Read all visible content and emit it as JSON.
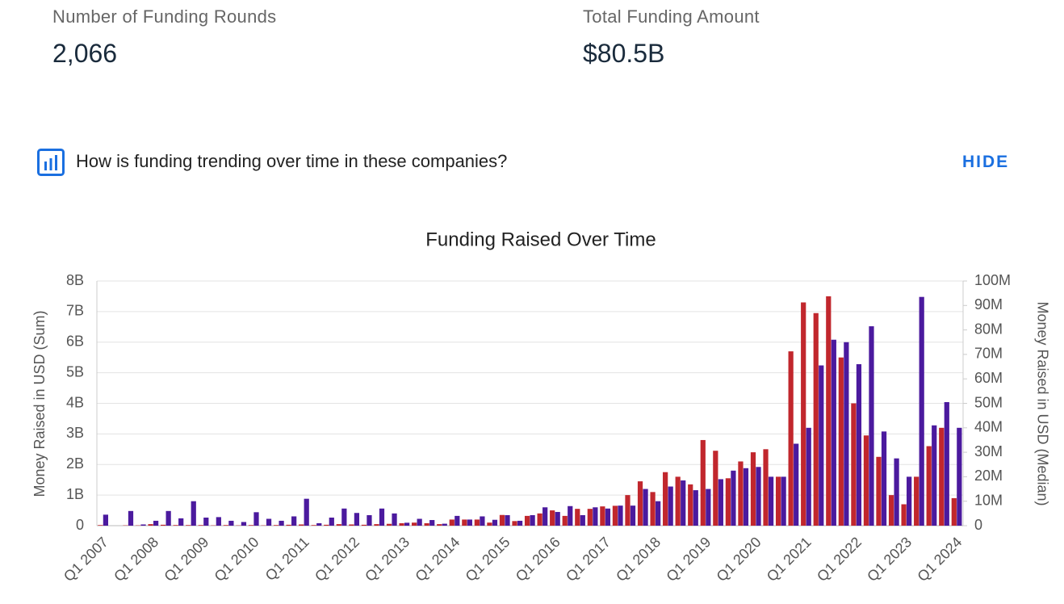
{
  "stats": [
    {
      "label": "Number of Funding Rounds",
      "value": "2,066"
    },
    {
      "label": "Total Funding Amount",
      "value": "$80.5B"
    }
  ],
  "question": "How is funding trending over time in these companies?",
  "hide": "HIDE",
  "chart_data": {
    "type": "bar",
    "title": "Funding Raised Over Time",
    "ylabel": "Money Raised in USD (Sum)",
    "y2label": "Money Raised in USD (Median)",
    "categories": [
      "Q1 2007",
      null,
      null,
      null,
      "Q1 2008",
      null,
      null,
      null,
      "Q1 2009",
      null,
      null,
      null,
      "Q1 2010",
      null,
      null,
      null,
      "Q1 2011",
      null,
      null,
      null,
      "Q1 2012",
      null,
      null,
      null,
      "Q1 2013",
      null,
      null,
      null,
      "Q1 2014",
      null,
      null,
      null,
      "Q1 2015",
      null,
      null,
      null,
      "Q1 2016",
      null,
      null,
      null,
      "Q1 2017",
      null,
      null,
      null,
      "Q1 2018",
      null,
      null,
      null,
      "Q1 2019",
      null,
      null,
      null,
      "Q1 2020",
      null,
      null,
      null,
      "Q1 2021",
      null,
      null,
      null,
      "Q1 2022",
      null,
      null,
      null,
      "Q1 2023",
      null,
      null,
      null,
      "Q1 2024"
    ],
    "series": [
      {
        "color": "#c1272d",
        "values": [
          20000000.0,
          0,
          10000000.0,
          10000000.0,
          50000000.0,
          30000000.0,
          20000000.0,
          20000000.0,
          20000000.0,
          10000000.0,
          20000000.0,
          10000000.0,
          20000000.0,
          10000000.0,
          20000000.0,
          30000000.0,
          40000000.0,
          20000000.0,
          30000000.0,
          50000000.0,
          40000000.0,
          30000000.0,
          50000000.0,
          60000000.0,
          80000000.0,
          100000000.0,
          80000000.0,
          50000000.0,
          200000000.0,
          200000000.0,
          200000000.0,
          100000000.0,
          350000000.0,
          150000000.0,
          320000000.0,
          400000000.0,
          500000000.0,
          320000000.0,
          550000000.0,
          550000000.0,
          630000000.0,
          650000000.0,
          1000000000.0,
          1450000000.0,
          1100000000.0,
          1750000000.0,
          1600000000.0,
          1350000000.0,
          2800000000.0,
          2450000000.0,
          1550000000.0,
          2100000000.0,
          2400000000.0,
          2500000000.0,
          1600000000.0,
          5700000000.0,
          7300000000.0,
          6950000000.0,
          7500000000.0,
          5500000000.0,
          4000000000.0,
          2950000000.0,
          2250000000.0,
          1000000000.0,
          700000000.0,
          1600000000.0,
          2600000000.0,
          3200000000.0,
          900000000.0
        ]
      },
      {
        "color": "#4b1a9e",
        "axis": "y2",
        "values": [
          4500000.0,
          0,
          6000000.0,
          500000.0,
          2000000.0,
          6000000.0,
          3000000.0,
          10000000.0,
          3300000.0,
          3500000.0,
          2000000.0,
          1500000.0,
          5500000.0,
          2800000.0,
          2000000.0,
          3800000.0,
          11000000.0,
          1000000.0,
          3300000.0,
          7000000.0,
          5200000.0,
          4300000.0,
          7000000.0,
          5000000.0,
          1200000.0,
          2800000.0,
          2300000.0,
          800000.0,
          4000000.0,
          2500000.0,
          3800000.0,
          2400000.0,
          4300000.0,
          2000000.0,
          4300000.0,
          7500000.0,
          5600000.0,
          8000000.0,
          4300000.0,
          7500000.0,
          7000000.0,
          8200000.0,
          8200000.0,
          15000000.0,
          10000000.0,
          16000000.0,
          18500000.0,
          14500000.0,
          15000000.0,
          19000000.0,
          22500000.0,
          23500000.0,
          24000000.0,
          20000000.0,
          20000000.0,
          33500000.0,
          40000000.0,
          65500000.0,
          76000000.0,
          75000000.0,
          66000000.0,
          81500000.0,
          38500000.0,
          27500000.0,
          20000000.0,
          93500000.0,
          41000000.0,
          50500000.0,
          40000000.0
        ]
      }
    ],
    "ylim": [
      0,
      8000000000.0
    ],
    "yticks": [
      0,
      {
        "value": 1000000000.0,
        "label": "1B"
      },
      {
        "value": 2000000000.0,
        "label": "2B"
      },
      {
        "value": 3000000000.0,
        "label": "3B"
      },
      {
        "value": 4000000000.0,
        "label": "4B"
      },
      {
        "value": 5000000000.0,
        "label": "5B"
      },
      {
        "value": 6000000000.0,
        "label": "6B"
      },
      {
        "value": 7000000000.0,
        "label": "7B"
      },
      {
        "value": 8000000000.0,
        "label": "8B"
      }
    ],
    "y2lim": [
      0,
      100000000.0
    ],
    "y2ticks": [
      0,
      {
        "value": 10000000.0,
        "label": "10M"
      },
      {
        "value": 20000000.0,
        "label": "20M"
      },
      {
        "value": 30000000.0,
        "label": "30M"
      },
      {
        "value": 40000000.0,
        "label": "40M"
      },
      {
        "value": 50000000.0,
        "label": "50M"
      },
      {
        "value": 60000000.0,
        "label": "60M"
      },
      {
        "value": 70000000.0,
        "label": "70M"
      },
      {
        "value": 80000000.0,
        "label": "80M"
      },
      {
        "value": 90000000.0,
        "label": "90M"
      },
      {
        "value": 100000000.0,
        "label": "100M"
      }
    ],
    "grid": true
  }
}
